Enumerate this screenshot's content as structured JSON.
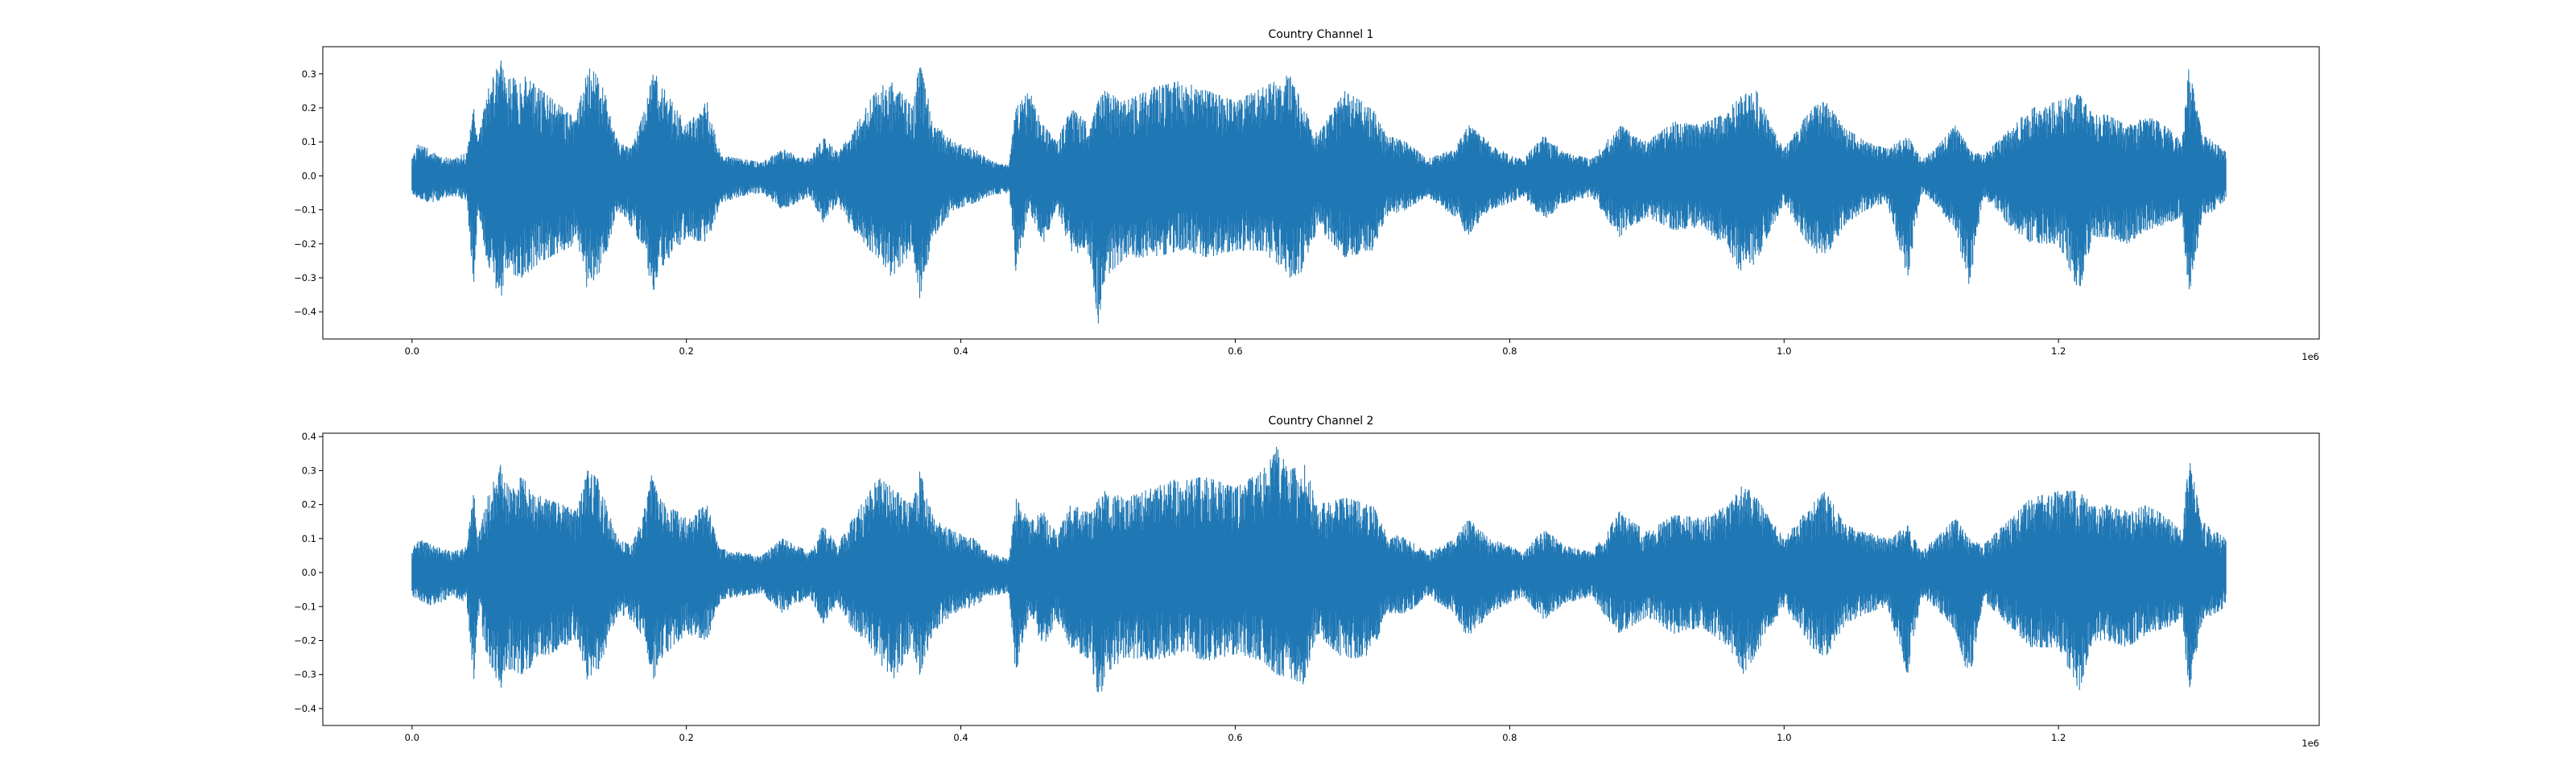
{
  "chart_data": [
    {
      "type": "area",
      "title": "Country Channel 1",
      "series_color": "#1f77b4",
      "xlabel": "",
      "ylabel": "",
      "x_offset_label": "1e6",
      "xlim": [
        -65000,
        1390000
      ],
      "ylim": [
        -0.48,
        0.38
      ],
      "xticks": [
        0.0,
        0.2,
        0.4,
        0.6,
        0.8,
        1.0,
        1.2
      ],
      "xtick_labels": [
        "0.0",
        "0.2",
        "0.4",
        "0.6",
        "0.8",
        "1.0",
        "1.2"
      ],
      "yticks": [
        -0.4,
        -0.3,
        -0.2,
        -0.1,
        0.0,
        0.1,
        0.2,
        0.3
      ],
      "ytick_labels": [
        "−0.4",
        "−0.3",
        "−0.2",
        "−0.1",
        "0.0",
        "0.1",
        "0.2",
        "0.3"
      ],
      "grid": false,
      "envelope": {
        "x": [
          0,
          5000,
          15000,
          30000,
          40000,
          45000,
          48000,
          55000,
          62000,
          65000,
          68000,
          80000,
          95000,
          110000,
          120000,
          128000,
          135000,
          140000,
          150000,
          160000,
          170000,
          175000,
          180000,
          200000,
          215000,
          225000,
          240000,
          255000,
          270000,
          290000,
          300000,
          310000,
          320000,
          330000,
          340000,
          350000,
          365000,
          370000,
          380000,
          395000,
          410000,
          420000,
          435000,
          440000,
          450000,
          460000,
          470000,
          480000,
          495000,
          500000,
          505000,
          520000,
          540000,
          560000,
          580000,
          600000,
          620000,
          640000,
          650000,
          660000,
          680000,
          700000,
          710000,
          725000,
          740000,
          760000,
          770000,
          785000,
          800000,
          810000,
          825000,
          840000,
          860000,
          870000,
          880000,
          900000,
          920000,
          940000,
          960000,
          970000,
          980000,
          990000,
          1000000,
          1020000,
          1030000,
          1045000,
          1060000,
          1075000,
          1090000,
          1100000,
          1110000,
          1125000,
          1135000,
          1145000,
          1165000,
          1180000,
          1200000,
          1215000,
          1225000,
          1235000,
          1250000,
          1265000,
          1280000,
          1290000,
          1295000,
          1305000,
          1315000,
          1322000
        ],
        "upper": [
          0.05,
          0.1,
          0.07,
          0.05,
          0.07,
          0.2,
          0.1,
          0.25,
          0.32,
          0.34,
          0.28,
          0.3,
          0.25,
          0.2,
          0.18,
          0.32,
          0.3,
          0.25,
          0.1,
          0.08,
          0.2,
          0.32,
          0.28,
          0.15,
          0.22,
          0.06,
          0.05,
          0.04,
          0.08,
          0.05,
          0.12,
          0.07,
          0.12,
          0.2,
          0.26,
          0.28,
          0.2,
          0.34,
          0.16,
          0.1,
          0.08,
          0.05,
          0.03,
          0.2,
          0.25,
          0.15,
          0.1,
          0.2,
          0.15,
          0.22,
          0.25,
          0.22,
          0.26,
          0.28,
          0.25,
          0.22,
          0.26,
          0.3,
          0.2,
          0.12,
          0.25,
          0.2,
          0.12,
          0.1,
          0.05,
          0.08,
          0.15,
          0.1,
          0.06,
          0.05,
          0.12,
          0.07,
          0.05,
          0.1,
          0.15,
          0.1,
          0.16,
          0.15,
          0.2,
          0.24,
          0.25,
          0.15,
          0.08,
          0.2,
          0.22,
          0.14,
          0.1,
          0.08,
          0.12,
          0.05,
          0.08,
          0.15,
          0.08,
          0.06,
          0.14,
          0.2,
          0.22,
          0.24,
          0.18,
          0.18,
          0.15,
          0.18,
          0.14,
          0.1,
          0.32,
          0.12,
          0.1,
          0.07
        ],
        "lower": [
          -0.05,
          -0.07,
          -0.08,
          -0.06,
          -0.08,
          -0.32,
          -0.1,
          -0.26,
          -0.34,
          -0.36,
          -0.28,
          -0.3,
          -0.25,
          -0.22,
          -0.2,
          -0.34,
          -0.3,
          -0.25,
          -0.1,
          -0.15,
          -0.22,
          -0.36,
          -0.28,
          -0.18,
          -0.2,
          -0.08,
          -0.06,
          -0.05,
          -0.1,
          -0.06,
          -0.14,
          -0.08,
          -0.15,
          -0.2,
          -0.25,
          -0.3,
          -0.22,
          -0.36,
          -0.18,
          -0.1,
          -0.08,
          -0.06,
          -0.05,
          -0.28,
          -0.1,
          -0.2,
          -0.1,
          -0.22,
          -0.26,
          -0.44,
          -0.3,
          -0.24,
          -0.24,
          -0.22,
          -0.24,
          -0.22,
          -0.22,
          -0.3,
          -0.28,
          -0.15,
          -0.24,
          -0.22,
          -0.12,
          -0.1,
          -0.06,
          -0.12,
          -0.18,
          -0.1,
          -0.08,
          -0.06,
          -0.13,
          -0.08,
          -0.06,
          -0.12,
          -0.18,
          -0.12,
          -0.16,
          -0.15,
          -0.22,
          -0.3,
          -0.25,
          -0.16,
          -0.08,
          -0.22,
          -0.24,
          -0.14,
          -0.1,
          -0.08,
          -0.3,
          -0.05,
          -0.08,
          -0.16,
          -0.33,
          -0.06,
          -0.15,
          -0.2,
          -0.2,
          -0.34,
          -0.18,
          -0.18,
          -0.2,
          -0.16,
          -0.14,
          -0.12,
          -0.36,
          -0.12,
          -0.1,
          -0.07
        ]
      }
    },
    {
      "type": "area",
      "title": "Country Channel 2",
      "series_color": "#1f77b4",
      "xlabel": "",
      "ylabel": "",
      "x_offset_label": "1e6",
      "xlim": [
        -65000,
        1390000
      ],
      "ylim": [
        -0.45,
        0.41
      ],
      "xticks": [
        0.0,
        0.2,
        0.4,
        0.6,
        0.8,
        1.0,
        1.2
      ],
      "xtick_labels": [
        "0.0",
        "0.2",
        "0.4",
        "0.6",
        "0.8",
        "1.0",
        "1.2"
      ],
      "yticks": [
        -0.4,
        -0.3,
        -0.2,
        -0.1,
        0.0,
        0.1,
        0.2,
        0.3,
        0.4
      ],
      "ytick_labels": [
        "−0.4",
        "−0.3",
        "−0.2",
        "−0.1",
        "0.0",
        "0.1",
        "0.2",
        "0.3",
        "0.4"
      ],
      "grid": false,
      "envelope": {
        "x": [
          0,
          5000,
          15000,
          30000,
          40000,
          45000,
          48000,
          55000,
          62000,
          65000,
          68000,
          80000,
          95000,
          110000,
          120000,
          128000,
          135000,
          140000,
          150000,
          160000,
          170000,
          175000,
          180000,
          200000,
          215000,
          225000,
          240000,
          255000,
          270000,
          290000,
          300000,
          310000,
          320000,
          330000,
          340000,
          350000,
          365000,
          370000,
          380000,
          395000,
          410000,
          420000,
          435000,
          440000,
          450000,
          460000,
          470000,
          480000,
          495000,
          500000,
          505000,
          520000,
          540000,
          560000,
          580000,
          600000,
          620000,
          630000,
          640000,
          650000,
          660000,
          680000,
          700000,
          710000,
          725000,
          740000,
          760000,
          770000,
          785000,
          800000,
          810000,
          825000,
          840000,
          860000,
          870000,
          880000,
          900000,
          920000,
          940000,
          960000,
          970000,
          980000,
          990000,
          1000000,
          1020000,
          1030000,
          1045000,
          1060000,
          1075000,
          1090000,
          1100000,
          1110000,
          1125000,
          1135000,
          1145000,
          1165000,
          1180000,
          1200000,
          1215000,
          1225000,
          1235000,
          1250000,
          1265000,
          1280000,
          1290000,
          1295000,
          1305000,
          1315000,
          1322000
        ],
        "upper": [
          0.07,
          0.1,
          0.08,
          0.06,
          0.08,
          0.25,
          0.1,
          0.22,
          0.3,
          0.32,
          0.26,
          0.28,
          0.22,
          0.2,
          0.18,
          0.3,
          0.28,
          0.22,
          0.1,
          0.08,
          0.2,
          0.3,
          0.22,
          0.16,
          0.2,
          0.07,
          0.06,
          0.05,
          0.1,
          0.06,
          0.14,
          0.08,
          0.15,
          0.22,
          0.28,
          0.25,
          0.2,
          0.3,
          0.16,
          0.12,
          0.1,
          0.06,
          0.04,
          0.22,
          0.15,
          0.18,
          0.12,
          0.2,
          0.18,
          0.22,
          0.24,
          0.22,
          0.25,
          0.28,
          0.28,
          0.25,
          0.3,
          0.37,
          0.3,
          0.33,
          0.2,
          0.22,
          0.2,
          0.12,
          0.1,
          0.06,
          0.1,
          0.16,
          0.1,
          0.08,
          0.06,
          0.13,
          0.08,
          0.06,
          0.12,
          0.18,
          0.12,
          0.17,
          0.16,
          0.2,
          0.26,
          0.22,
          0.16,
          0.1,
          0.2,
          0.24,
          0.14,
          0.12,
          0.1,
          0.14,
          0.06,
          0.1,
          0.16,
          0.1,
          0.08,
          0.16,
          0.22,
          0.24,
          0.24,
          0.2,
          0.2,
          0.18,
          0.2,
          0.16,
          0.12,
          0.34,
          0.15,
          0.12,
          0.1
        ],
        "lower": [
          -0.07,
          -0.08,
          -0.1,
          -0.07,
          -0.09,
          -0.32,
          -0.12,
          -0.25,
          -0.32,
          -0.34,
          -0.28,
          -0.3,
          -0.25,
          -0.22,
          -0.2,
          -0.32,
          -0.3,
          -0.24,
          -0.12,
          -0.14,
          -0.2,
          -0.34,
          -0.26,
          -0.18,
          -0.2,
          -0.08,
          -0.07,
          -0.06,
          -0.12,
          -0.07,
          -0.15,
          -0.09,
          -0.16,
          -0.2,
          -0.26,
          -0.32,
          -0.22,
          -0.3,
          -0.18,
          -0.12,
          -0.1,
          -0.07,
          -0.06,
          -0.3,
          -0.12,
          -0.22,
          -0.14,
          -0.22,
          -0.26,
          -0.41,
          -0.3,
          -0.25,
          -0.26,
          -0.24,
          -0.26,
          -0.24,
          -0.26,
          -0.3,
          -0.31,
          -0.33,
          -0.18,
          -0.26,
          -0.24,
          -0.12,
          -0.12,
          -0.07,
          -0.12,
          -0.2,
          -0.12,
          -0.09,
          -0.07,
          -0.14,
          -0.09,
          -0.07,
          -0.13,
          -0.18,
          -0.13,
          -0.18,
          -0.16,
          -0.22,
          -0.3,
          -0.24,
          -0.16,
          -0.1,
          -0.22,
          -0.25,
          -0.15,
          -0.12,
          -0.1,
          -0.3,
          -0.07,
          -0.1,
          -0.17,
          -0.32,
          -0.08,
          -0.16,
          -0.22,
          -0.22,
          -0.35,
          -0.2,
          -0.2,
          -0.22,
          -0.18,
          -0.16,
          -0.14,
          -0.35,
          -0.14,
          -0.12,
          -0.1
        ]
      }
    }
  ]
}
